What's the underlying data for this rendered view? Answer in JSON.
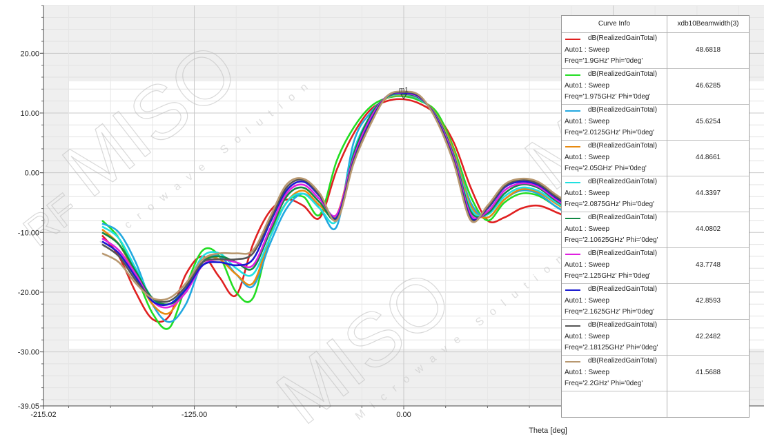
{
  "chart_data": {
    "type": "line",
    "xlabel": "Theta [deg]",
    "ylabel": "",
    "xlim": [
      -215.02,
      215.02
    ],
    "ylim": [
      -39.05,
      28.0
    ],
    "x_ticks": [
      "-215.02",
      "-125.00",
      "0.00"
    ],
    "y_ticks": [
      "20.00",
      "10.00",
      "0.00",
      "-10.00",
      "-20.00",
      "-30.00",
      "-39.05"
    ],
    "marker": {
      "label": "m1",
      "x": 0,
      "y": 12.6
    },
    "legend_header": [
      "Curve Info",
      "xdb10Beamwidth(3)"
    ],
    "series": [
      {
        "label_line1": "dB(RealizedGainTotal)",
        "label_line2": "Auto1 : Sweep",
        "label_line3": "Freq='1.9GHz' Phi='0deg'",
        "beamwidth": "48.6818",
        "color": "#e02020",
        "x": [
          -180,
          -170,
          -160,
          -150,
          -140,
          -130,
          -120,
          -110,
          -100,
          -90,
          -80,
          -70,
          -60,
          -50,
          -40,
          -30,
          -20,
          -10,
          0,
          10,
          20,
          30,
          40,
          50,
          60,
          70,
          80,
          90,
          100,
          110,
          120,
          130,
          140,
          150,
          160,
          170,
          180
        ],
        "y": [
          -10.5,
          -14,
          -20,
          -24.5,
          -24,
          -17,
          -14,
          -17.5,
          -20.5,
          -12,
          -6.5,
          -4.5,
          -5.5,
          -7.5,
          0.5,
          6.5,
          10.5,
          12,
          12.3,
          11.5,
          9.5,
          5,
          -2.5,
          -8,
          -7.5,
          -6,
          -5.5,
          -6.5,
          -8,
          -11.5,
          -17,
          -23.5,
          -21.5,
          -16,
          -14,
          -13.5,
          -13
        ]
      },
      {
        "label_line1": "dB(RealizedGainTotal)",
        "label_line2": "Auto1 : Sweep",
        "label_line3": "Freq='1.975GHz' Phi='0deg'",
        "beamwidth": "46.6285",
        "color": "#22dd22",
        "x": [
          -180,
          -170,
          -160,
          -150,
          -140,
          -130,
          -120,
          -110,
          -100,
          -90,
          -80,
          -70,
          -60,
          -50,
          -40,
          -30,
          -20,
          -10,
          0,
          10,
          20,
          30,
          40,
          50,
          60,
          70,
          80,
          90,
          100,
          110,
          120,
          130,
          140,
          150,
          160,
          170,
          180
        ],
        "y": [
          -8,
          -11,
          -17,
          -23.5,
          -26,
          -19,
          -13,
          -14,
          -20,
          -21,
          -11,
          -5,
          -4,
          -7,
          2,
          7.5,
          11,
          12.5,
          12.8,
          12,
          10,
          4,
          -4,
          -8,
          -5,
          -3.5,
          -3.8,
          -5.5,
          -7.5,
          -11,
          -17,
          -22.5,
          -19.5,
          -15,
          -13.5,
          -13,
          -12.5
        ]
      },
      {
        "label_line1": "dB(RealizedGainTotal)",
        "label_line2": "Auto1 : Sweep",
        "label_line3": "Freq='2.0125GHz' Phi='0deg'",
        "beamwidth": "45.6254",
        "color": "#22a8e0",
        "x": [
          -180,
          -170,
          -160,
          -150,
          -140,
          -130,
          -120,
          -110,
          -100,
          -90,
          -80,
          -70,
          -60,
          -50,
          -40,
          -30,
          -20,
          -10,
          0,
          10,
          20,
          30,
          40,
          50,
          60,
          70,
          80,
          90,
          100,
          110,
          120,
          130,
          140,
          150,
          160,
          170,
          180
        ],
        "y": [
          -8.5,
          -10,
          -15,
          -22,
          -25,
          -22,
          -15,
          -14,
          -17,
          -19,
          -12,
          -6,
          -3.5,
          -6,
          -9,
          5,
          10,
          12.5,
          13,
          12.2,
          9.5,
          3.5,
          -5,
          -7.5,
          -4.5,
          -3,
          -3.5,
          -5.5,
          -7.5,
          -11,
          -16,
          -22,
          -20,
          -15,
          -13.2,
          -12.8,
          -12.5
        ]
      },
      {
        "label_line1": "dB(RealizedGainTotal)",
        "label_line2": "Auto1 : Sweep",
        "label_line3": "Freq='2.05GHz' Phi='0deg'",
        "beamwidth": "44.8661",
        "color": "#e88a10",
        "x": [
          -180,
          -170,
          -160,
          -150,
          -140,
          -130,
          -120,
          -110,
          -100,
          -90,
          -80,
          -70,
          -60,
          -50,
          -40,
          -30,
          -20,
          -10,
          0,
          10,
          20,
          30,
          40,
          50,
          60,
          70,
          80,
          90,
          100,
          110,
          120,
          130,
          140,
          150,
          160,
          170,
          180
        ],
        "y": [
          -9.5,
          -12,
          -17,
          -22,
          -23.5,
          -19,
          -14.5,
          -14.5,
          -17,
          -18.5,
          -11,
          -5,
          -3,
          -5.5,
          -7,
          3,
          9.5,
          12.5,
          13,
          12.3,
          9.5,
          3.5,
          -5.5,
          -7.5,
          -4.5,
          -2.8,
          -3.2,
          -5,
          -7,
          -10.5,
          -15.5,
          -21,
          -19.5,
          -14.5,
          -13,
          -12.5,
          -12.3
        ]
      },
      {
        "label_line1": "dB(RealizedGainTotal)",
        "label_line2": "Auto1 : Sweep",
        "label_line3": "Freq='2.0875GHz' Phi='0deg'",
        "beamwidth": "44.3397",
        "color": "#20e0e0",
        "x": [
          -180,
          -170,
          -160,
          -150,
          -140,
          -130,
          -120,
          -110,
          -100,
          -90,
          -80,
          -70,
          -60,
          -50,
          -40,
          -30,
          -20,
          -10,
          0,
          10,
          20,
          30,
          40,
          50,
          60,
          70,
          80,
          90,
          100,
          110,
          120,
          130,
          140,
          150,
          160,
          170,
          180
        ],
        "y": [
          -9,
          -11,
          -16,
          -21,
          -22,
          -19,
          -14,
          -13.5,
          -16,
          -17,
          -11,
          -5,
          -3.5,
          -6,
          -8,
          3.5,
          9.5,
          12.6,
          13.1,
          12.3,
          9.3,
          3,
          -6,
          -7,
          -4,
          -2.5,
          -3,
          -4.8,
          -6.8,
          -10,
          -15,
          -20.5,
          -19,
          -14.2,
          -12.8,
          -12.3,
          -12
        ]
      },
      {
        "label_line1": "dB(RealizedGainTotal)",
        "label_line2": "Auto1 : Sweep",
        "label_line3": "Freq='2.10625GHz' Phi='0deg'",
        "beamwidth": "44.0802",
        "color": "#118844",
        "x": [
          -180,
          -170,
          -160,
          -150,
          -140,
          -130,
          -120,
          -110,
          -100,
          -90,
          -80,
          -70,
          -60,
          -50,
          -40,
          -30,
          -20,
          -10,
          0,
          10,
          20,
          30,
          40,
          50,
          60,
          70,
          80,
          90,
          100,
          110,
          120,
          130,
          140,
          150,
          160,
          170,
          180
        ],
        "y": [
          -10,
          -12,
          -16.5,
          -21,
          -22,
          -20,
          -15,
          -14,
          -15,
          -16,
          -10,
          -4,
          -2.5,
          -5,
          -7.5,
          3,
          9.5,
          12.7,
          13.2,
          12.4,
          9.2,
          2.8,
          -6.5,
          -6.8,
          -3.5,
          -2,
          -2.5,
          -4.5,
          -6.5,
          -9.5,
          -14.5,
          -20,
          -18.5,
          -14,
          -12.7,
          -12.2,
          -11.9
        ]
      },
      {
        "label_line1": "dB(RealizedGainTotal)",
        "label_line2": "Auto1 : Sweep",
        "label_line3": "Freq='2.125GHz' Phi='0deg'",
        "beamwidth": "43.7748",
        "color": "#e020e0",
        "x": [
          -180,
          -170,
          -160,
          -150,
          -140,
          -130,
          -120,
          -110,
          -100,
          -90,
          -80,
          -70,
          -60,
          -50,
          -40,
          -30,
          -20,
          -10,
          0,
          10,
          20,
          30,
          40,
          50,
          60,
          70,
          80,
          90,
          100,
          110,
          120,
          130,
          140,
          150,
          160,
          170,
          180
        ],
        "y": [
          -11,
          -13,
          -17,
          -21.5,
          -22.5,
          -20,
          -15.5,
          -14.5,
          -15,
          -15.5,
          -9.5,
          -3.5,
          -2,
          -4.5,
          -7,
          2.5,
          9,
          12.8,
          13.3,
          12.5,
          9,
          2.5,
          -7,
          -6.5,
          -3,
          -1.8,
          -2.3,
          -4.3,
          -6.3,
          -9.3,
          -14,
          -19.5,
          -18,
          -13.8,
          -12.6,
          -12.1,
          -11.8
        ]
      },
      {
        "label_line1": "dB(RealizedGainTotal)",
        "label_line2": "Auto1 : Sweep",
        "label_line3": "Freq='2.1625GHz' Phi='0deg'",
        "beamwidth": "42.8593",
        "color": "#1a1ad0",
        "x": [
          -180,
          -170,
          -160,
          -150,
          -140,
          -130,
          -120,
          -110,
          -100,
          -90,
          -80,
          -70,
          -60,
          -50,
          -40,
          -30,
          -20,
          -10,
          0,
          10,
          20,
          30,
          40,
          50,
          60,
          70,
          80,
          90,
          100,
          110,
          120,
          130,
          140,
          150,
          160,
          170,
          180
        ],
        "y": [
          -11.5,
          -13.5,
          -17.5,
          -21.5,
          -22,
          -19.5,
          -15.5,
          -15,
          -15.5,
          -14.5,
          -8.5,
          -3,
          -1.5,
          -4,
          -7.5,
          2,
          8.5,
          12.8,
          13.4,
          12.6,
          8.8,
          2,
          -7.5,
          -6,
          -2.5,
          -1.5,
          -2,
          -4,
          -6,
          -9,
          -13.5,
          -18.5,
          -17.5,
          -13.5,
          -12.4,
          -12,
          -11.6
        ]
      },
      {
        "label_line1": "dB(RealizedGainTotal)",
        "label_line2": "Auto1 : Sweep",
        "label_line3": "Freq='2.18125GHz' Phi='0deg'",
        "beamwidth": "42.2482",
        "color": "#555555",
        "x": [
          -180,
          -170,
          -160,
          -150,
          -140,
          -130,
          -120,
          -110,
          -100,
          -90,
          -80,
          -70,
          -60,
          -50,
          -40,
          -30,
          -20,
          -10,
          0,
          10,
          20,
          30,
          40,
          50,
          60,
          70,
          80,
          90,
          100,
          110,
          120,
          130,
          140,
          150,
          160,
          170,
          180
        ],
        "y": [
          -12,
          -14,
          -18,
          -21,
          -21.5,
          -19,
          -15,
          -14.5,
          -14.5,
          -13.5,
          -8,
          -2.5,
          -1.2,
          -3.8,
          -7.8,
          1.8,
          8.2,
          12.8,
          13.5,
          12.7,
          8.6,
          1.8,
          -7.8,
          -5.8,
          -2.3,
          -1.2,
          -1.8,
          -3.8,
          -5.8,
          -8.7,
          -13,
          -17.5,
          -16.5,
          -13,
          -12.2,
          -11.8,
          -11.5
        ]
      },
      {
        "label_line1": "dB(RealizedGainTotal)",
        "label_line2": "Auto1 : Sweep",
        "label_line3": "Freq='2.2GHz' Phi='0deg'",
        "beamwidth": "41.5688",
        "color": "#b89870",
        "x": [
          -180,
          -170,
          -160,
          -150,
          -140,
          -130,
          -120,
          -110,
          -100,
          -90,
          -80,
          -70,
          -60,
          -50,
          -40,
          -30,
          -20,
          -10,
          0,
          10,
          20,
          30,
          40,
          50,
          60,
          70,
          80,
          90,
          100,
          110,
          120,
          130,
          140,
          150,
          160,
          170,
          180
        ],
        "y": [
          -13.5,
          -15,
          -18.5,
          -21,
          -21,
          -18.5,
          -14.5,
          -13.5,
          -13.5,
          -13,
          -7.5,
          -2,
          -1,
          -3.5,
          -8,
          1.5,
          8,
          12.8,
          13.6,
          12.8,
          8.5,
          1.5,
          -8,
          -5.5,
          -2,
          -1,
          -1.5,
          -3.5,
          -5.5,
          -8.5,
          -12.5,
          -16,
          -15.5,
          -13,
          -12,
          -11.6,
          -11.3
        ]
      }
    ]
  },
  "watermark": {
    "brand": "MISO",
    "brand2": "RF",
    "tagline": "Microwave Solution"
  }
}
